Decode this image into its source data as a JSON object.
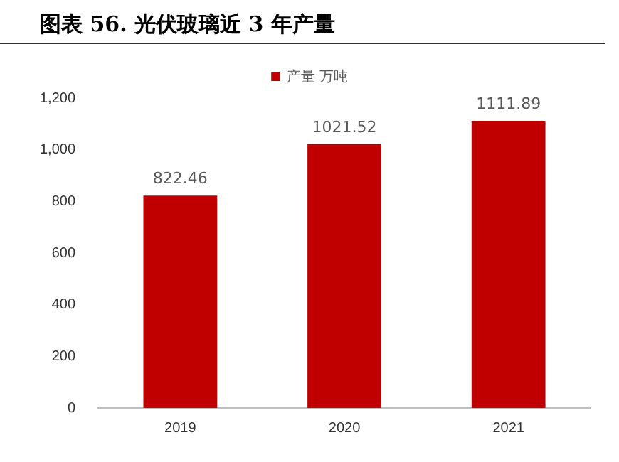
{
  "chart_data": {
    "type": "bar",
    "title": "图表 56. 光伏玻璃近 3 年产量",
    "categories": [
      "2019",
      "2020",
      "2021"
    ],
    "series": [
      {
        "name": "产量 万吨",
        "color": "#c00000",
        "values": [
          822.46,
          1021.52,
          1111.89
        ]
      }
    ],
    "ylim": [
      0,
      1200
    ],
    "yticks": [
      {
        "value": 0,
        "label": "0"
      },
      {
        "value": 200,
        "label": "200"
      },
      {
        "value": 400,
        "label": "400"
      },
      {
        "value": 600,
        "label": "600"
      },
      {
        "value": 800,
        "label": "800"
      },
      {
        "value": 1000,
        "label": "1,000"
      },
      {
        "value": 1200,
        "label": "1,200"
      }
    ],
    "grid": false,
    "legend": "top",
    "data_labels": true
  }
}
